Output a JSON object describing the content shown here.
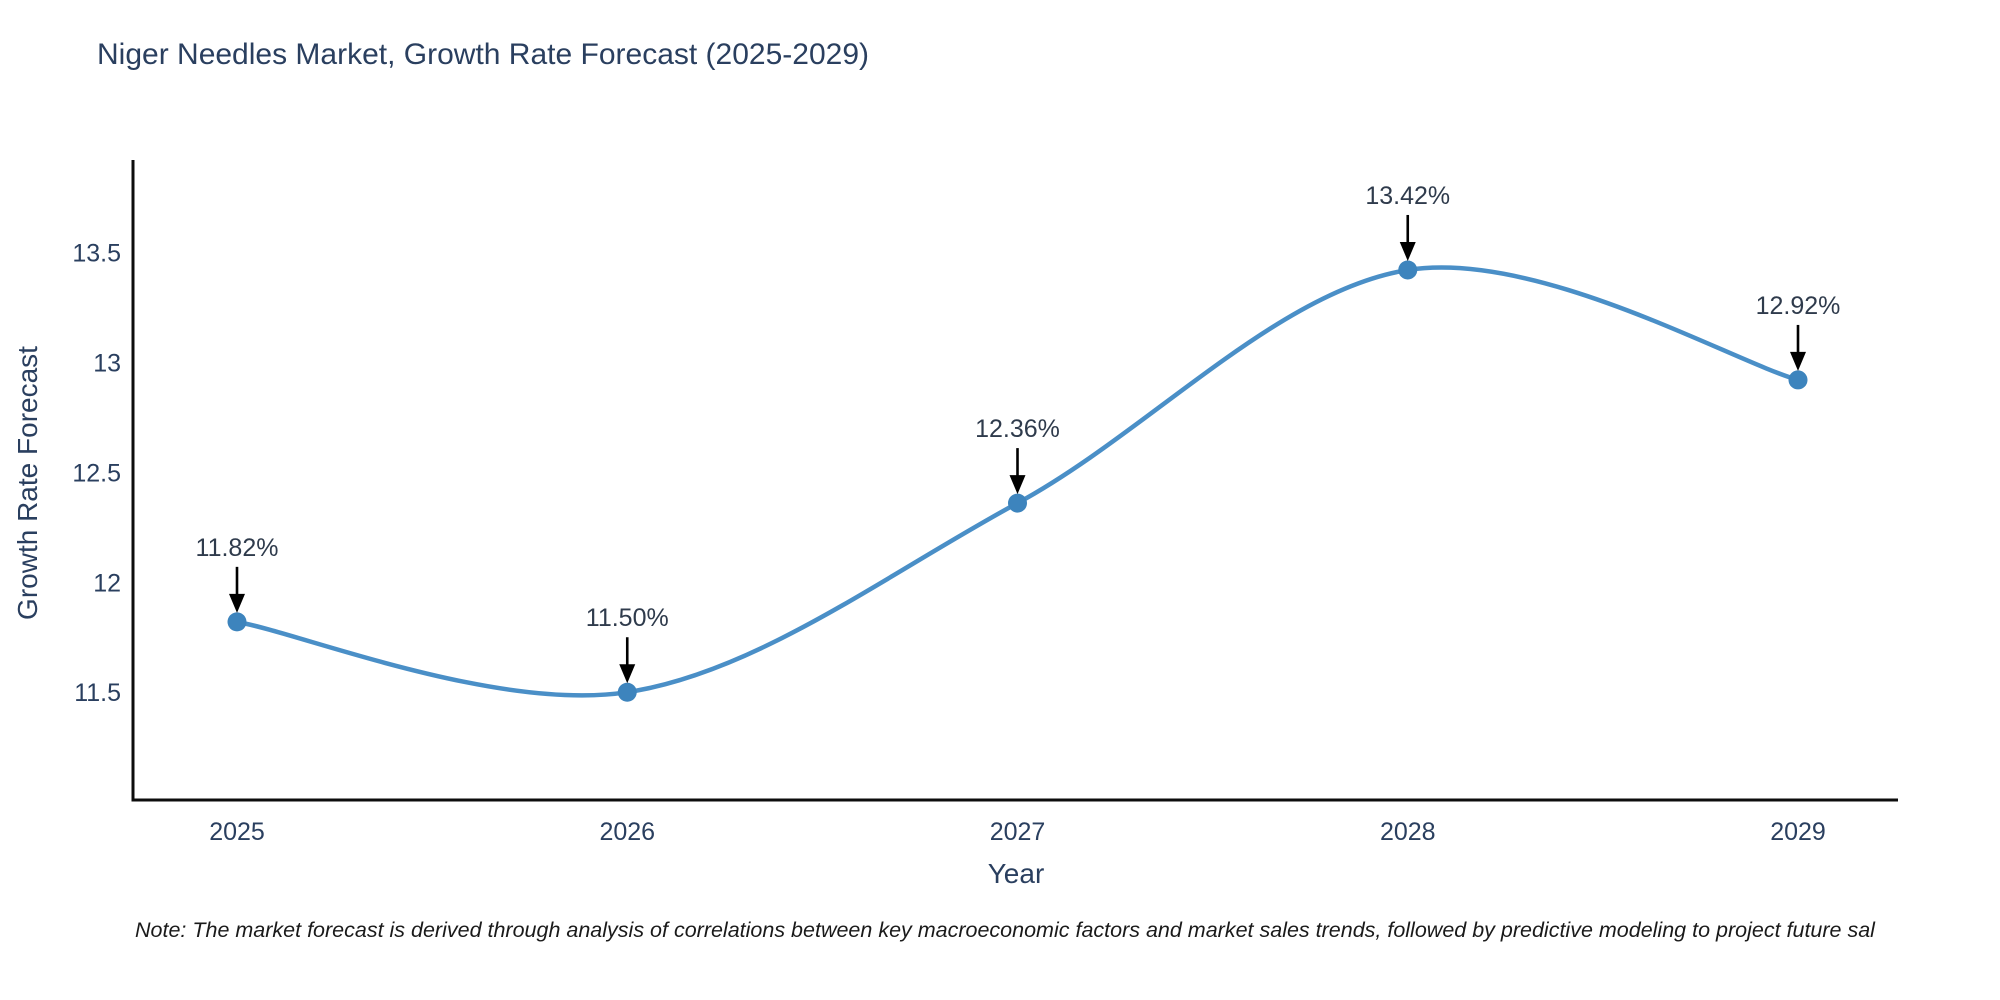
{
  "title": "Niger Needles Market, Growth Rate Forecast (2025-2029)",
  "note": "Note: The market forecast is derived through analysis of correlations between key macroeconomic factors and market sales trends, followed by predictive modeling to project future sal",
  "chart_data": {
    "type": "line",
    "line_shape": "spline",
    "title": "Niger Needles Market, Growth Rate Forecast (2025-2029)",
    "xlabel": "Year",
    "ylabel": "Growth Rate Forecast",
    "x": [
      2025,
      2026,
      2027,
      2028,
      2029
    ],
    "y": [
      11.82,
      11.5,
      12.36,
      13.42,
      12.92
    ],
    "point_labels": [
      "11.82%",
      "11.50%",
      "12.36%",
      "13.42%",
      "12.92%"
    ],
    "x_tick_labels": [
      "2025",
      "2026",
      "2027",
      "2028",
      "2029"
    ],
    "y_tick_labels": [
      "11.5",
      "12",
      "12.5",
      "13",
      "13.5"
    ],
    "y_tick_values": [
      11.5,
      12.0,
      12.5,
      13.0,
      13.5
    ],
    "ylim": [
      11.01,
      13.92
    ],
    "grid": false,
    "legend": "none",
    "colors": {
      "line": "#4a8fc7",
      "marker": "#3d84bd",
      "axis_line": "#0d0d0d",
      "text": "#2a3f5f",
      "annotation_text": "#2f3b4c",
      "annotation_arrow": "#000000",
      "background": "#ffffff"
    }
  }
}
